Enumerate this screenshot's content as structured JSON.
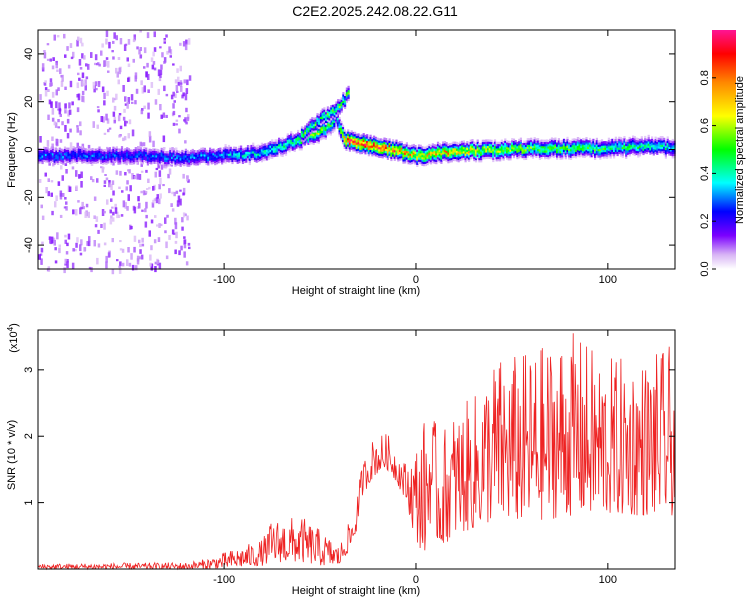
{
  "figure_title": "C2E2.2025.242.08.22.G11",
  "chart_data": [
    {
      "type": "heatmap",
      "xlabel": "Height of straight line (km)",
      "ylabel": "Frequency (Hz)",
      "xlim": [
        -197,
        135
      ],
      "ylim": [
        -50,
        50
      ],
      "xticks": [
        -100,
        0,
        100
      ],
      "xtick_labels": [
        "-100",
        "0",
        "100"
      ],
      "yticks": [
        -40,
        -20,
        0,
        20,
        40
      ],
      "ytick_labels": [
        "-40",
        "-20",
        "0",
        "20",
        "40"
      ],
      "colorbar": {
        "label": "Normalized spectral amplitude",
        "range": [
          0,
          1
        ],
        "ticks": [
          0.0,
          0.2,
          0.4,
          0.6,
          0.8
        ],
        "tick_labels": [
          "0.0",
          "0.2",
          "0.4",
          "0.6",
          "0.8"
        ]
      },
      "ridge_x": [
        -197,
        -150,
        -120,
        -100,
        -80,
        -70,
        -60,
        -50,
        -45,
        -42,
        -38,
        -35,
        -30,
        -20,
        -10,
        0,
        20,
        40,
        60,
        80,
        100,
        120,
        135
      ],
      "ridge_y": [
        -2,
        -2,
        -3,
        -2,
        -1,
        2,
        5,
        8,
        11,
        14,
        5,
        4,
        3,
        1,
        0,
        -2,
        0,
        0,
        1,
        1,
        1,
        2,
        1
      ],
      "ridge_amp": [
        0.3,
        0.28,
        0.3,
        0.35,
        0.4,
        0.45,
        0.5,
        0.55,
        0.5,
        0.35,
        0.75,
        0.95,
        0.95,
        0.95,
        0.85,
        0.7,
        0.75,
        0.6,
        0.55,
        0.55,
        0.5,
        0.45,
        0.4
      ],
      "branch_x": [
        -60,
        -55,
        -50,
        -45,
        -40,
        -35
      ],
      "branch_y": [
        7,
        10,
        13,
        16,
        19,
        24
      ]
    },
    {
      "type": "line",
      "xlabel": "Height of straight line (km)",
      "ylabel": "SNR (10 * v/v)",
      "y_multiplier": "(x10",
      "y_multiplier_exp": "4",
      "y_multiplier_close": ")",
      "xlim": [
        -197,
        135
      ],
      "ylim": [
        0,
        3.6
      ],
      "xticks": [
        -100,
        0,
        100
      ],
      "xtick_labels": [
        "-100",
        "0",
        "100"
      ],
      "yticks": [
        1,
        2,
        3
      ],
      "ytick_labels": [
        "1",
        "2",
        "3"
      ],
      "color": "#ee2222",
      "envelope": {
        "x": [
          -197,
          -120,
          -110,
          -95,
          -80,
          -75,
          -60,
          -50,
          -40,
          -32,
          -28,
          -22,
          -15,
          -10,
          -5,
          0,
          5,
          8,
          12,
          20,
          30,
          40,
          60,
          80,
          100,
          120,
          135
        ],
        "low": [
          0.0,
          0.0,
          0.0,
          0.02,
          0.05,
          0.1,
          0.1,
          0.05,
          0.05,
          0.4,
          1.1,
          1.4,
          1.5,
          1.3,
          1.0,
          0.4,
          0.2,
          0.8,
          0.3,
          0.5,
          0.6,
          0.7,
          0.7,
          0.8,
          0.8,
          0.8,
          0.8
        ],
        "high": [
          0.08,
          0.1,
          0.15,
          0.3,
          0.45,
          0.75,
          0.8,
          0.6,
          0.35,
          0.9,
          1.6,
          2.0,
          2.05,
          1.8,
          1.6,
          1.9,
          2.35,
          2.45,
          2.0,
          2.4,
          2.6,
          3.2,
          3.3,
          3.6,
          3.2,
          3.2,
          3.4
        ]
      }
    }
  ]
}
